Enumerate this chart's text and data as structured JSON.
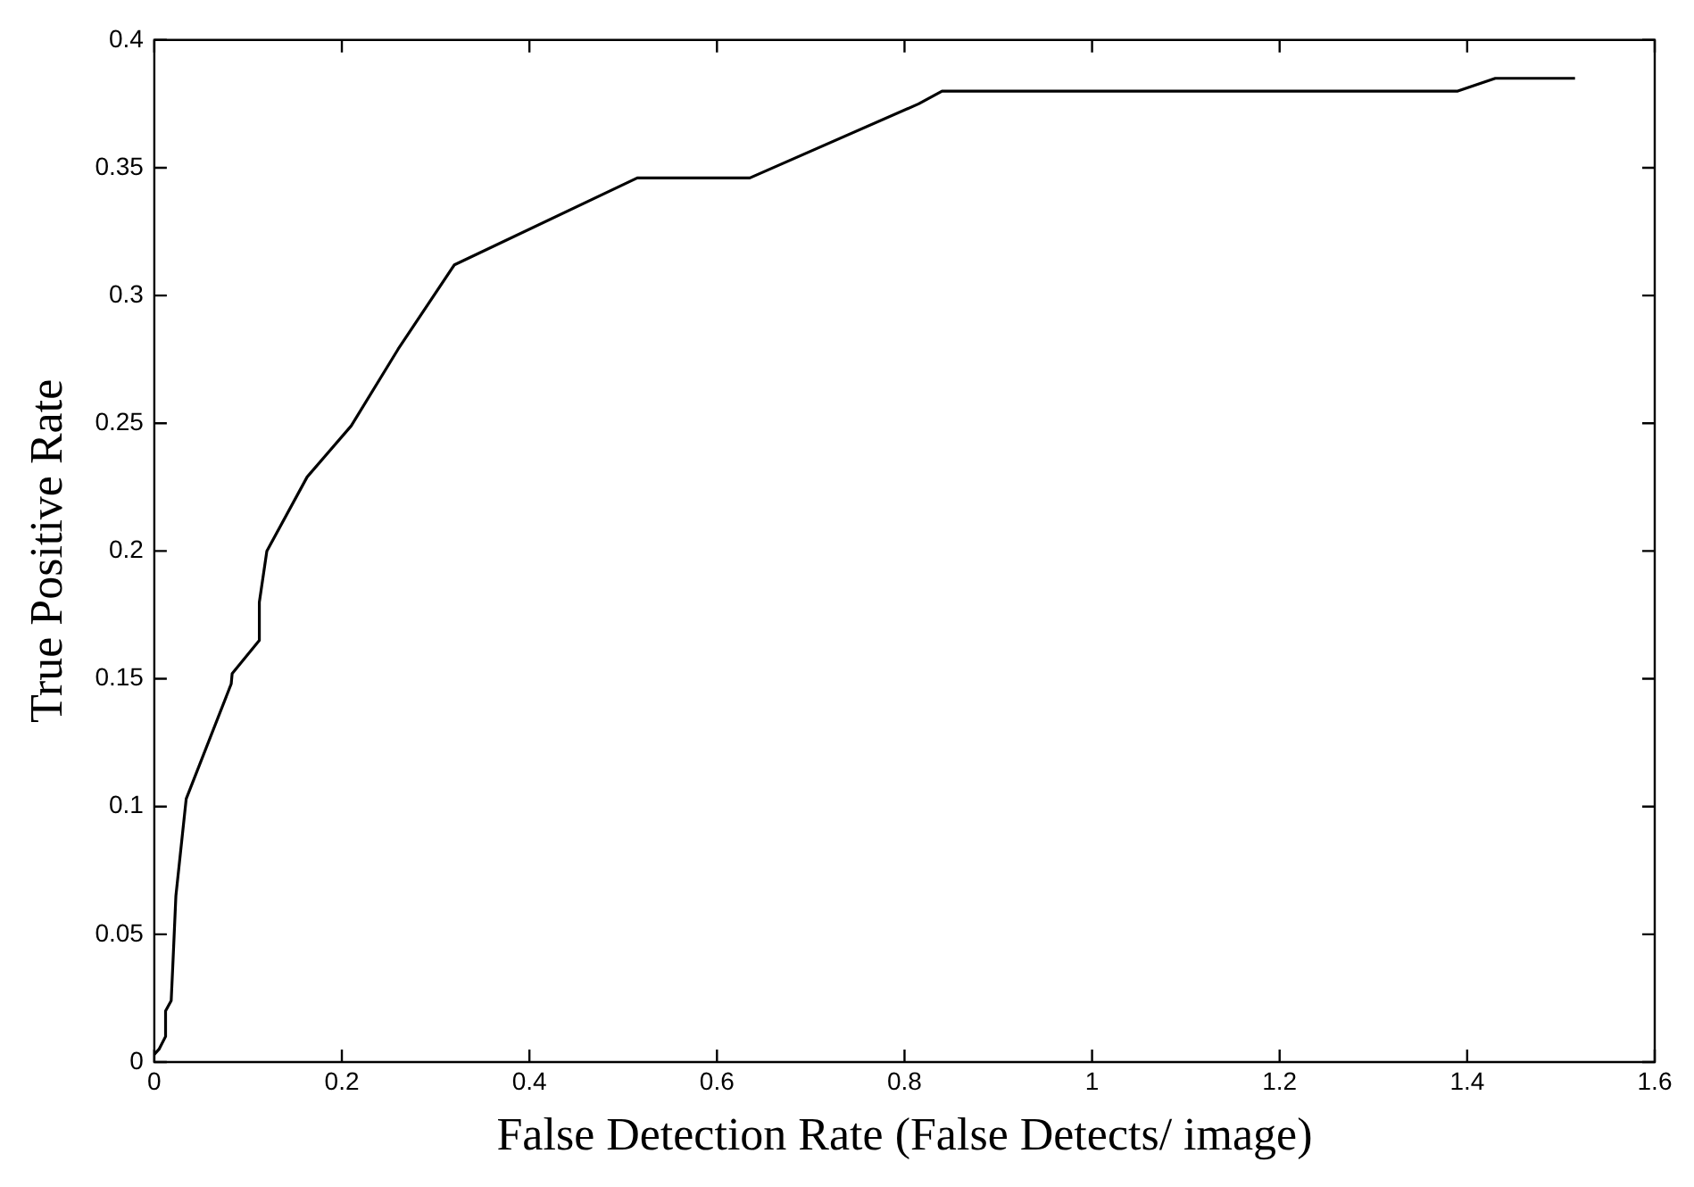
{
  "chart_data": {
    "type": "line",
    "xlabel": "False Detection Rate (False Detects/ image)",
    "ylabel": "True Positive Rate",
    "x": [
      0,
      0.005,
      0.012,
      0.012,
      0.018,
      0.02,
      0.023,
      0.034,
      0.082,
      0.083,
      0.112,
      0.112,
      0.12,
      0.163,
      0.21,
      0.26,
      0.32,
      0.515,
      0.635,
      0.815,
      0.84,
      1.39,
      1.43,
      1.515
    ],
    "series": [
      {
        "color": "#000000",
        "values": [
          0.003,
          0.005,
          0.01,
          0.02,
          0.024,
          0.04,
          0.065,
          0.103,
          0.148,
          0.152,
          0.165,
          0.18,
          0.2,
          0.229,
          0.249,
          0.279,
          0.312,
          0.346,
          0.346,
          0.375,
          0.38,
          0.38,
          0.385,
          0.385
        ]
      }
    ],
    "xlim": [
      0,
      1.6
    ],
    "xticks": [
      0,
      0.2,
      0.4,
      0.6,
      0.8,
      1,
      1.2,
      1.4,
      1.6
    ],
    "ylim": [
      0,
      0.4
    ],
    "yticks": [
      0,
      0.05,
      0.1,
      0.15,
      0.2,
      0.25,
      0.3,
      0.35,
      0.4
    ],
    "grid": false,
    "legend": false,
    "marker": "none",
    "line_style": "solid"
  }
}
